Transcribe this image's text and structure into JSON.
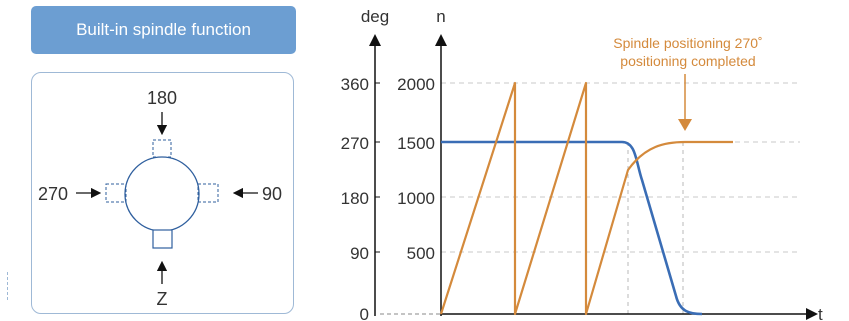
{
  "banner": {
    "title": "Built-in spindle function"
  },
  "spindle_diagram": {
    "labels": {
      "top": "180",
      "left": "270",
      "right": "90",
      "bottom": "Z"
    }
  },
  "chart_data": {
    "type": "line",
    "y_axis_left_label": "deg",
    "y_axis_right_label": "n",
    "x_axis_label": "t",
    "deg_ticks": [
      "360",
      "270",
      "180",
      "90",
      "0"
    ],
    "n_ticks": [
      "2000",
      "1500",
      "1000",
      "500"
    ],
    "annotation": "Spindle positioning 270˚\npositioning completed",
    "colors": {
      "speed": "#3a6db5",
      "position": "#d48a3c",
      "grid": "#c8c8c8"
    }
  }
}
